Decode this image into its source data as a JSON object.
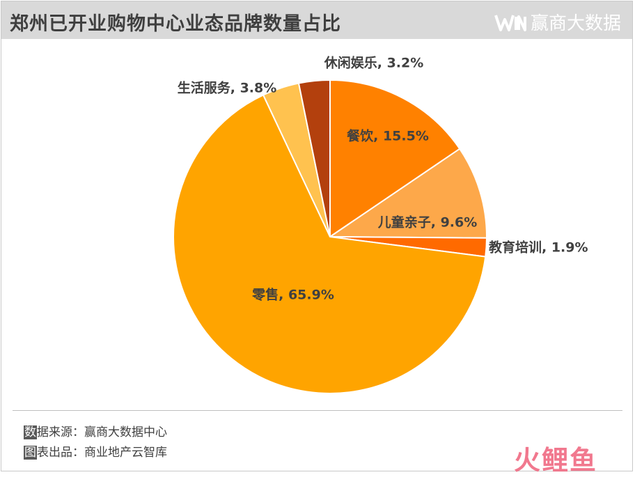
{
  "header": {
    "title": "郑州已开业购物中心业态品牌数量占比",
    "brand_name": "赢商大数据",
    "brand_logo_text": "WIN"
  },
  "chart_data": {
    "type": "pie",
    "title": "郑州已开业购物中心业态品牌数量占比",
    "slices": [
      {
        "name": "餐饮",
        "value": 15.5,
        "label": "餐饮, 15.5%",
        "color": "#ff8100"
      },
      {
        "name": "儿童亲子",
        "value": 9.6,
        "label": "儿童亲子, 9.6%",
        "color": "#fda84a"
      },
      {
        "name": "教育培训",
        "value": 1.9,
        "label": "教育培训, 1.9%",
        "color": "#ff6a00"
      },
      {
        "name": "零售",
        "value": 65.9,
        "label": "零售, 65.9%",
        "color": "#ffa400"
      },
      {
        "name": "生活服务",
        "value": 3.8,
        "label": "生活服务, 3.8%",
        "color": "#ffc24f"
      },
      {
        "name": "休闲娱乐",
        "value": 3.2,
        "label": "休闲娱乐, 3.2%",
        "color": "#b3400d"
      }
    ],
    "start_angle_deg": 0,
    "direction": "clockwise",
    "legend": "none"
  },
  "footer": {
    "source_marker": "数",
    "source_text": "据来源：赢商大数据中心",
    "producer_marker": "图",
    "producer_text": "表出品：商业地产云智库",
    "watermark": "火鲤鱼"
  }
}
